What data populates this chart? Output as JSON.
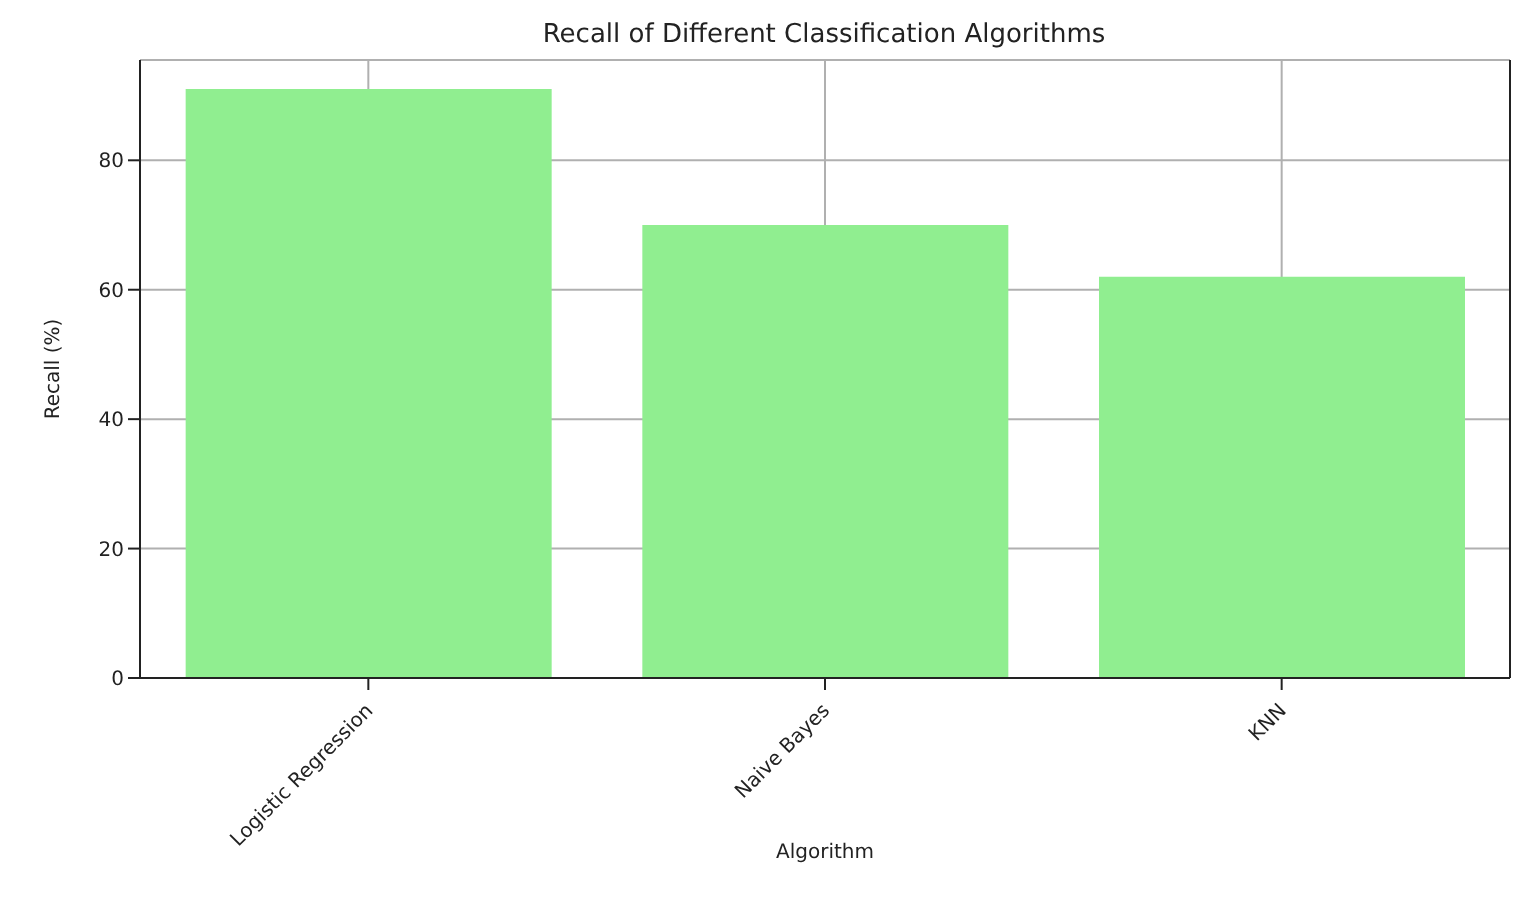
{
  "chart_data": {
    "type": "bar",
    "title": "Recall of Different Classification Algorithms",
    "xlabel": "Algorithm",
    "ylabel": "Recall (%)",
    "categories": [
      "Logistic Regression",
      "Naive Bayes",
      "KNN"
    ],
    "values": [
      91,
      70,
      62
    ],
    "color": "#90ee90",
    "ylim": [
      0,
      95.5
    ],
    "yticks": [
      0,
      20,
      40,
      60,
      80
    ],
    "grid": true
  }
}
